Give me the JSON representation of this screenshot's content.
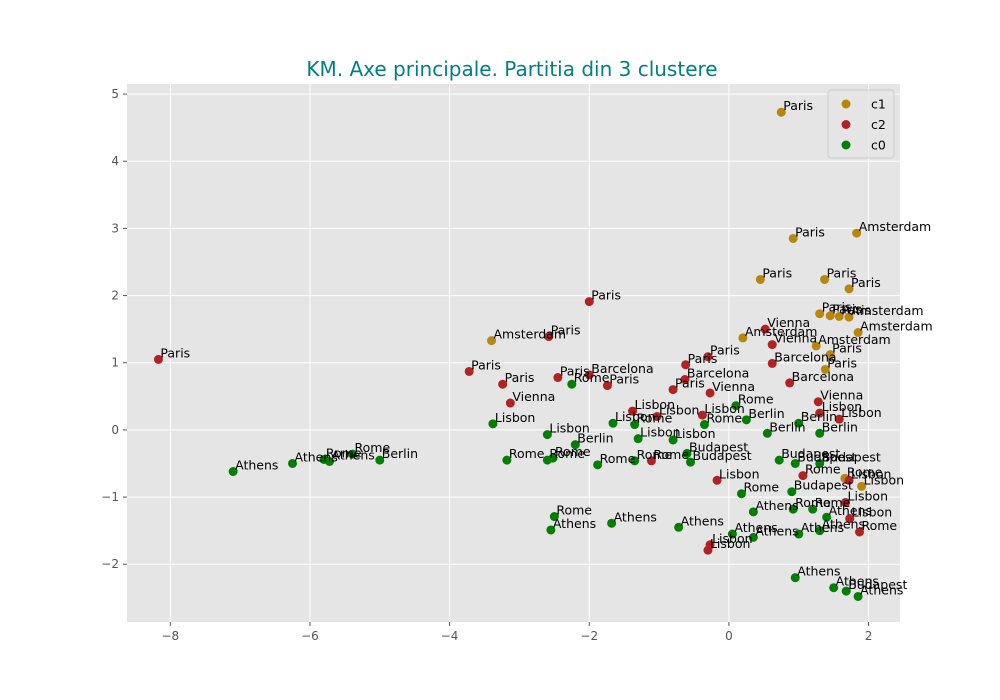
{
  "chart_data": {
    "type": "scatter",
    "title": "KM. Axe principale. Partitia din 3 clustere",
    "xlabel": "",
    "ylabel": "",
    "xlim": [
      -8.62,
      2.45
    ],
    "ylim": [
      -2.86,
      5.15
    ],
    "xticks": [
      -8,
      -6,
      -4,
      -2,
      0,
      2
    ],
    "xtick_labels": [
      "−8",
      "−6",
      "−4",
      "−2",
      "0",
      "2"
    ],
    "yticks": [
      -2,
      -1,
      0,
      1,
      2,
      3,
      4,
      5
    ],
    "ytick_labels": [
      "−2",
      "−1",
      "0",
      "1",
      "2",
      "3",
      "4",
      "5"
    ],
    "grid": true,
    "legend_position": "top-right",
    "colors": {
      "background": "#e5e5e5",
      "grid": "#ffffff",
      "title": "#008080",
      "c1": "#b8860b",
      "c2": "#b22222",
      "c0": "#008000"
    },
    "series": [
      {
        "name": "c1",
        "points": [
          {
            "x": 0.75,
            "y": 4.73,
            "label": "Paris"
          },
          {
            "x": 1.83,
            "y": 2.93,
            "label": "Amsterdam"
          },
          {
            "x": 0.92,
            "y": 2.85,
            "label": "Paris"
          },
          {
            "x": 0.45,
            "y": 2.24,
            "label": "Paris"
          },
          {
            "x": 1.37,
            "y": 2.24,
            "label": "Paris"
          },
          {
            "x": 1.72,
            "y": 2.1,
            "label": "Paris"
          },
          {
            "x": 1.3,
            "y": 1.73,
            "label": "Paris"
          },
          {
            "x": 1.45,
            "y": 1.7,
            "label": "Paris"
          },
          {
            "x": 1.58,
            "y": 1.69,
            "label": "Paris"
          },
          {
            "x": 1.72,
            "y": 1.68,
            "label": "Amsterdam"
          },
          {
            "x": 1.85,
            "y": 1.45,
            "label": "Amsterdam"
          },
          {
            "x": 0.2,
            "y": 1.37,
            "label": "Amsterdam"
          },
          {
            "x": 1.25,
            "y": 1.25,
            "label": "Amsterdam"
          },
          {
            "x": 1.45,
            "y": 1.12,
            "label": "Paris"
          },
          {
            "x": -3.4,
            "y": 1.33,
            "label": "Amsterdam"
          },
          {
            "x": 1.38,
            "y": 0.9,
            "label": "Paris"
          },
          {
            "x": 1.66,
            "y": -0.72,
            "label": "Rome"
          },
          {
            "x": 1.9,
            "y": -0.84,
            "label": "Lisbon"
          }
        ]
      },
      {
        "name": "c2",
        "points": [
          {
            "x": -8.17,
            "y": 1.05,
            "label": "Paris"
          },
          {
            "x": -2.0,
            "y": 1.91,
            "label": "Paris"
          },
          {
            "x": -2.58,
            "y": 1.39,
            "label": "Paris"
          },
          {
            "x": -3.72,
            "y": 0.87,
            "label": "Paris"
          },
          {
            "x": -3.24,
            "y": 0.68,
            "label": "Paris"
          },
          {
            "x": -2.45,
            "y": 0.78,
            "label": "Paris"
          },
          {
            "x": -1.74,
            "y": 0.66,
            "label": "Paris"
          },
          {
            "x": -2.0,
            "y": 0.82,
            "label": "Barcelona"
          },
          {
            "x": -3.13,
            "y": 0.4,
            "label": "Vienna"
          },
          {
            "x": -0.3,
            "y": 1.09,
            "label": "Paris"
          },
          {
            "x": 0.52,
            "y": 1.5,
            "label": "Vienna"
          },
          {
            "x": 0.62,
            "y": 1.27,
            "label": "Vienna"
          },
          {
            "x": -0.62,
            "y": 0.97,
            "label": "Paris"
          },
          {
            "x": -0.8,
            "y": 0.6,
            "label": "Paris"
          },
          {
            "x": -0.63,
            "y": 0.75,
            "label": "Barcelona"
          },
          {
            "x": -0.27,
            "y": 0.55,
            "label": "Vienna"
          },
          {
            "x": 0.62,
            "y": 0.99,
            "label": "Barcelona"
          },
          {
            "x": 0.87,
            "y": 0.7,
            "label": "Barcelona"
          },
          {
            "x": 1.28,
            "y": 0.42,
            "label": "Vienna"
          },
          {
            "x": -1.38,
            "y": 0.28,
            "label": "Lisbon"
          },
          {
            "x": -1.03,
            "y": 0.2,
            "label": "Lisbon"
          },
          {
            "x": -0.38,
            "y": 0.22,
            "label": "Lisbon"
          },
          {
            "x": 1.3,
            "y": 0.25,
            "label": "Lisbon"
          },
          {
            "x": 1.58,
            "y": 0.16,
            "label": "Lisbon"
          },
          {
            "x": -1.11,
            "y": -0.46,
            "label": "Rome"
          },
          {
            "x": -0.17,
            "y": -0.75,
            "label": "Lisbon"
          },
          {
            "x": 1.06,
            "y": -0.68,
            "label": "Rome"
          },
          {
            "x": 1.72,
            "y": -0.75,
            "label": "Lisbon"
          },
          {
            "x": 1.67,
            "y": -1.08,
            "label": "Lisbon"
          },
          {
            "x": 1.73,
            "y": -1.32,
            "label": "Lisbon"
          },
          {
            "x": 1.87,
            "y": -1.52,
            "label": "Rome"
          },
          {
            "x": -0.27,
            "y": -1.71,
            "label": "Lisbon"
          },
          {
            "x": -0.3,
            "y": -1.79,
            "label": "Lisbon"
          }
        ]
      },
      {
        "name": "c0",
        "points": [
          {
            "x": -7.1,
            "y": -0.62,
            "label": "Athens"
          },
          {
            "x": -6.25,
            "y": -0.5,
            "label": "Athens"
          },
          {
            "x": -5.72,
            "y": -0.47,
            "label": "Athens"
          },
          {
            "x": -5.39,
            "y": -0.36,
            "label": "Rome"
          },
          {
            "x": -5.8,
            "y": -0.44,
            "label": "Rome"
          },
          {
            "x": -5.0,
            "y": -0.45,
            "label": "Berlin"
          },
          {
            "x": -3.38,
            "y": 0.09,
            "label": "Lisbon"
          },
          {
            "x": -2.6,
            "y": -0.07,
            "label": "Lisbon"
          },
          {
            "x": -2.25,
            "y": 0.68,
            "label": "Rome"
          },
          {
            "x": -2.2,
            "y": -0.22,
            "label": "Berlin"
          },
          {
            "x": -3.18,
            "y": -0.45,
            "label": "Rome"
          },
          {
            "x": -2.6,
            "y": -0.45,
            "label": "Rome"
          },
          {
            "x": -2.52,
            "y": -0.42,
            "label": "Rome"
          },
          {
            "x": -2.5,
            "y": -1.29,
            "label": "Rome"
          },
          {
            "x": -2.55,
            "y": -1.49,
            "label": "Athens"
          },
          {
            "x": -1.68,
            "y": -1.39,
            "label": "Athens"
          },
          {
            "x": -0.72,
            "y": -1.45,
            "label": "Athens"
          },
          {
            "x": -1.66,
            "y": 0.1,
            "label": "Lisbon"
          },
          {
            "x": -1.35,
            "y": 0.08,
            "label": "Rome"
          },
          {
            "x": -1.88,
            "y": -0.52,
            "label": "Rome"
          },
          {
            "x": -1.3,
            "y": -0.13,
            "label": "Lisbon"
          },
          {
            "x": -1.35,
            "y": -0.46,
            "label": "Rome"
          },
          {
            "x": -0.8,
            "y": -0.15,
            "label": "Lisbon"
          },
          {
            "x": -0.55,
            "y": -0.48,
            "label": "Budapest"
          },
          {
            "x": -0.6,
            "y": -0.35,
            "label": "Budapest"
          },
          {
            "x": -0.35,
            "y": 0.08,
            "label": "Rome"
          },
          {
            "x": 0.1,
            "y": 0.36,
            "label": "Rome"
          },
          {
            "x": 0.25,
            "y": 0.15,
            "label": "Berlin"
          },
          {
            "x": 0.55,
            "y": -0.05,
            "label": "Berlin"
          },
          {
            "x": 0.72,
            "y": -0.45,
            "label": "Budapest"
          },
          {
            "x": 0.95,
            "y": -0.5,
            "label": "Budapest"
          },
          {
            "x": 1.0,
            "y": 0.1,
            "label": "Berlin"
          },
          {
            "x": 1.3,
            "y": -0.05,
            "label": "Berlin"
          },
          {
            "x": 1.3,
            "y": -0.5,
            "label": "Budapest"
          },
          {
            "x": 0.18,
            "y": -0.95,
            "label": "Rome"
          },
          {
            "x": 0.9,
            "y": -0.92,
            "label": "Budapest"
          },
          {
            "x": 0.35,
            "y": -1.22,
            "label": "Athens"
          },
          {
            "x": 0.92,
            "y": -1.18,
            "label": "Rome"
          },
          {
            "x": 1.2,
            "y": -1.18,
            "label": "Rome"
          },
          {
            "x": 1.4,
            "y": -1.3,
            "label": "Athens"
          },
          {
            "x": 0.05,
            "y": -1.55,
            "label": "Athens"
          },
          {
            "x": 0.35,
            "y": -1.6,
            "label": "Athens"
          },
          {
            "x": 1.0,
            "y": -1.55,
            "label": "Athens"
          },
          {
            "x": 1.3,
            "y": -1.5,
            "label": "Athens"
          },
          {
            "x": 0.95,
            "y": -2.2,
            "label": "Athens"
          },
          {
            "x": 1.5,
            "y": -2.35,
            "label": "Athens"
          },
          {
            "x": 1.68,
            "y": -2.4,
            "label": "Budapest"
          },
          {
            "x": 1.85,
            "y": -2.48,
            "label": "Athens"
          }
        ]
      }
    ]
  }
}
